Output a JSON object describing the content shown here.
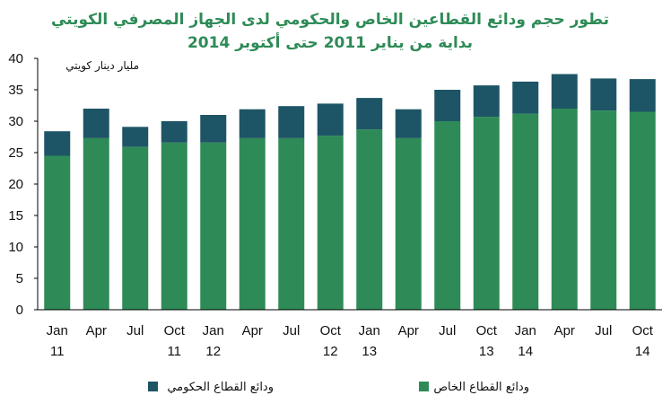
{
  "chart_data": {
    "type": "bar",
    "stacked": true,
    "title_line1": "تطور حجم  ودائع القطاعين الخاص والحكومي لدى الجهاز المصرفي الكويتي",
    "title_line2": "بداية من يناير 2011 حتى أكتوبر 2014",
    "ylabel": "مليار دينار كويتي",
    "ylim": [
      0,
      40
    ],
    "yticks": [
      0,
      5,
      10,
      15,
      20,
      25,
      30,
      35,
      40
    ],
    "grid": false,
    "legend_position": "bottom",
    "categories": [
      [
        "Jan",
        "11"
      ],
      [
        "Apr",
        ""
      ],
      [
        "Jul",
        ""
      ],
      [
        "Oct",
        "11"
      ],
      [
        "Jan",
        "12"
      ],
      [
        "Apr",
        ""
      ],
      [
        "Jul",
        ""
      ],
      [
        "Oct",
        "12"
      ],
      [
        "Jan",
        "13"
      ],
      [
        "Apr",
        ""
      ],
      [
        "Jul",
        ""
      ],
      [
        "Oct",
        "13"
      ],
      [
        "Jan",
        "14"
      ],
      [
        "Apr",
        ""
      ],
      [
        "Jul",
        ""
      ],
      [
        "Oct",
        "14"
      ]
    ],
    "series": [
      {
        "name": "ودائع القطاع الخاص",
        "color": "#2e8b57",
        "values": [
          24.5,
          27.3,
          25.9,
          26.6,
          26.6,
          27.3,
          27.3,
          27.7,
          28.7,
          27.3,
          30.0,
          30.7,
          31.2,
          32.0,
          31.7,
          31.5
        ]
      },
      {
        "name": "ودائع القطاع الحكومي",
        "color": "#1e5566",
        "values": [
          3.9,
          4.7,
          3.2,
          3.4,
          4.4,
          4.6,
          5.1,
          5.1,
          5.0,
          4.6,
          5.0,
          5.0,
          5.1,
          5.5,
          5.1,
          5.2
        ]
      }
    ]
  }
}
